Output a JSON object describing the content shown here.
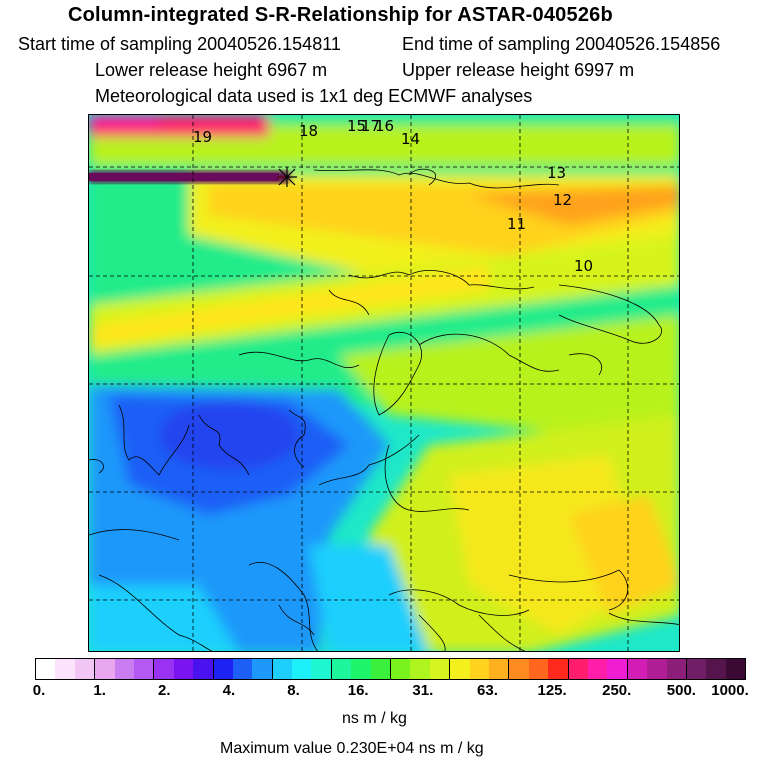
{
  "header": {
    "title": "Column-integrated S-R-Relationship for ASTAR-040526b",
    "start_time": "Start time of sampling 20040526.154811",
    "end_time": "End time of sampling 20040526.154856",
    "lower_release": "Lower release height 6967 m",
    "upper_release": "Upper release height 6997 m",
    "met_data": "Meteorological data used is 1x1 deg ECMWF analyses"
  },
  "map": {
    "trajectory_labels": [
      "19",
      "18",
      "15",
      "17",
      "16",
      "14",
      "13",
      "12",
      "11",
      "10"
    ],
    "colors": {
      "low_blue": "#2a6cff",
      "cyan": "#19e0f5",
      "green": "#1ee86e",
      "lime": "#b6f21d",
      "yellow": "#ffe61a",
      "orange": "#ffa31a",
      "magenta": "#ff1aa3",
      "purple": "#6a0a5a"
    }
  },
  "colorbar": {
    "tick_labels": [
      "0.",
      "1.",
      "2.",
      "4.",
      "8.",
      "16.",
      "31.",
      "63.",
      "125.",
      "250.",
      "500.",
      "1000."
    ],
    "colors": [
      "#ffffff",
      "#fbe3fb",
      "#f2c6f4",
      "#e8a6ee",
      "#c97df0",
      "#b45af2",
      "#9a32f4",
      "#7a14f0",
      "#4a12ee",
      "#1e22f2",
      "#1e5ff6",
      "#1e98fa",
      "#1ecffd",
      "#1ef0fb",
      "#1ef6cf",
      "#1ef69d",
      "#1ef46a",
      "#3af03c",
      "#7af21e",
      "#aef41e",
      "#d6f41e",
      "#f4f01e",
      "#ffd21e",
      "#ffb01e",
      "#ff8c1e",
      "#ff661e",
      "#ff2a1e",
      "#ff1e6e",
      "#ff1eaa",
      "#f01ed2",
      "#d21eb4",
      "#b01e96",
      "#8c1e7a",
      "#701e66",
      "#56144c",
      "#3a0a34"
    ],
    "units": "ns m / kg",
    "max_value": "Maximum value  0.230E+04 ns m / kg"
  }
}
